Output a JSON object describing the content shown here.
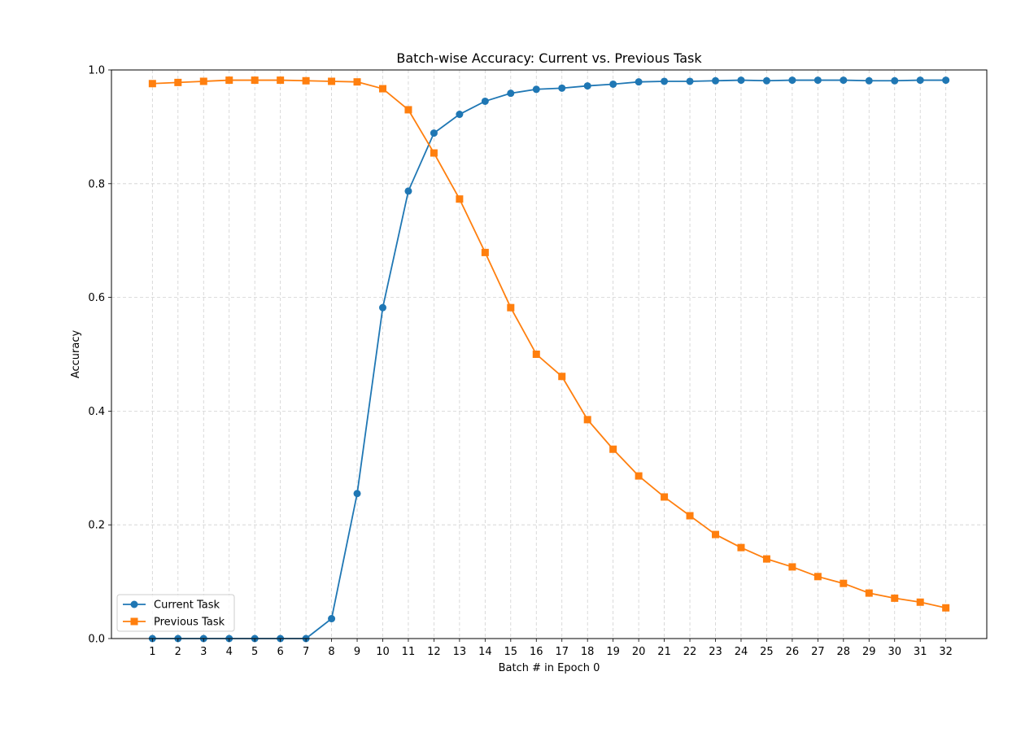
{
  "chart_data": {
    "type": "line",
    "title": "Batch-wise Accuracy: Current vs. Previous Task",
    "xlabel": "Batch # in Epoch 0",
    "ylabel": "Accuracy",
    "x": [
      1,
      2,
      3,
      4,
      5,
      6,
      7,
      8,
      9,
      10,
      11,
      12,
      13,
      14,
      15,
      16,
      17,
      18,
      19,
      20,
      21,
      22,
      23,
      24,
      25,
      26,
      27,
      28,
      29,
      30,
      31,
      32
    ],
    "xlim": [
      -0.6,
      33.6
    ],
    "ylim": [
      0,
      1.0
    ],
    "yticks": [
      "0.0",
      "0.2",
      "0.4",
      "0.6",
      "0.8",
      "1.0"
    ],
    "xticks": [
      "1",
      "2",
      "3",
      "4",
      "5",
      "6",
      "7",
      "8",
      "9",
      "10",
      "11",
      "12",
      "13",
      "14",
      "15",
      "16",
      "17",
      "18",
      "19",
      "20",
      "21",
      "22",
      "23",
      "24",
      "25",
      "26",
      "27",
      "28",
      "29",
      "30",
      "31",
      "32"
    ],
    "grid": true,
    "legend_position": "lower-left",
    "series": [
      {
        "name": "Current Task",
        "color": "#1f77b4",
        "marker": "circle",
        "values": [
          0.0,
          0.0,
          0.0,
          0.0,
          0.0,
          0.0,
          0.0,
          0.035,
          0.255,
          0.582,
          0.787,
          0.889,
          0.922,
          0.945,
          0.959,
          0.966,
          0.968,
          0.972,
          0.975,
          0.979,
          0.98,
          0.98,
          0.981,
          0.982,
          0.981,
          0.982,
          0.982,
          0.982,
          0.981,
          0.981,
          0.982,
          0.982
        ]
      },
      {
        "name": "Previous Task",
        "color": "#ff7f0e",
        "marker": "square",
        "values": [
          0.976,
          0.978,
          0.98,
          0.982,
          0.982,
          0.982,
          0.981,
          0.98,
          0.979,
          0.967,
          0.93,
          0.854,
          0.773,
          0.679,
          0.582,
          0.5,
          0.461,
          0.385,
          0.333,
          0.286,
          0.249,
          0.216,
          0.183,
          0.16,
          0.14,
          0.126,
          0.109,
          0.097,
          0.08,
          0.071,
          0.064,
          0.054
        ]
      }
    ]
  }
}
